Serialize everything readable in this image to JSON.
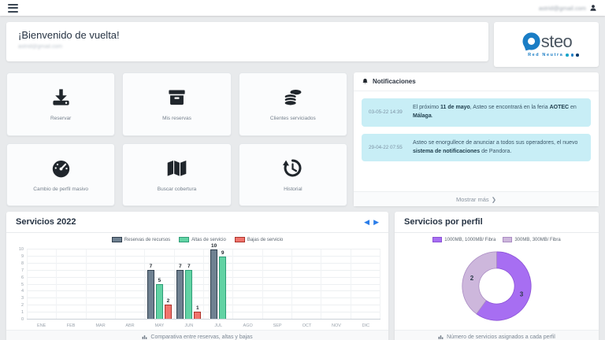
{
  "topbar": {
    "user_email": "astrid@gmail.com"
  },
  "welcome": {
    "title": "¡Bienvenido de vuelta!",
    "email": "astrid@gmail.com"
  },
  "logo": {
    "brand": "asteo",
    "wordmark_rest": "steo",
    "tagline": "Red Neutra",
    "blue": "#1a7dc5",
    "dot_colors": [
      "#16a6c9",
      "#1a7dc5",
      "#0b3a6b"
    ]
  },
  "quick_actions": [
    {
      "label": "Reservar",
      "icon": "download-icon"
    },
    {
      "label": "Mis reservas",
      "icon": "archive-icon"
    },
    {
      "label": "Clientes serviciados",
      "icon": "coins-icon"
    },
    {
      "label": "Cambio de perfil masivo",
      "icon": "gauge-icon"
    },
    {
      "label": "Buscar cobertura",
      "icon": "map-icon"
    },
    {
      "label": "Historial",
      "icon": "history-icon"
    }
  ],
  "notifications": {
    "title": "Notificaciones",
    "items": [
      {
        "date": "03-05-22 14:39",
        "segments": [
          {
            "t": "El próximo ",
            "b": false
          },
          {
            "t": "11 de mayo",
            "b": true
          },
          {
            "t": ", Asteo se encontrará en la feria ",
            "b": false
          },
          {
            "t": "AOTEC",
            "b": true
          },
          {
            "t": " en ",
            "b": false
          },
          {
            "t": "Málaga",
            "b": true
          },
          {
            "t": ".",
            "b": false
          }
        ]
      },
      {
        "date": "29-04-22 07:55",
        "segments": [
          {
            "t": "Asteo se enorgullece de anunciar a todos sus operadores, el nuevo ",
            "b": false
          },
          {
            "t": "sistema de notificaciones",
            "b": true
          },
          {
            "t": " de Pandora.",
            "b": false
          }
        ]
      }
    ],
    "show_more": "Mostrar más",
    "chevron": "❯"
  },
  "chart_data": [
    {
      "id": "servicios-2022",
      "type": "bar",
      "title": "Servicios 2022",
      "prev_arrow": "◀",
      "next_arrow": "▶",
      "categories": [
        "ENE",
        "FEB",
        "MAR",
        "ABR",
        "MAY",
        "JUN",
        "JUL",
        "AGO",
        "SEP",
        "OCT",
        "NOV",
        "DIC"
      ],
      "series": [
        {
          "name": "Reservas de recursos",
          "color": "#6f8191",
          "border": "#31404f",
          "values": [
            0,
            0,
            0,
            0,
            7,
            7,
            10,
            0,
            0,
            0,
            0,
            0
          ]
        },
        {
          "name": "Altas de servicio",
          "color": "#62d3a4",
          "border": "#2f9e78",
          "values": [
            0,
            0,
            0,
            0,
            5,
            7,
            9,
            0,
            0,
            0,
            0,
            0
          ]
        },
        {
          "name": "Bajas de servicio",
          "color": "#f0746d",
          "border": "#ad342c",
          "values": [
            0,
            0,
            0,
            0,
            2,
            1,
            0,
            0,
            0,
            0,
            0,
            0
          ]
        }
      ],
      "ylim": [
        0,
        10
      ],
      "ticks": [
        0,
        1,
        2,
        3,
        4,
        5,
        6,
        7,
        8,
        9,
        10
      ],
      "grid": true,
      "legend_position": "top",
      "footer": "Comparativa entre reservas, altas y bajas"
    },
    {
      "id": "servicios-por-perfil",
      "type": "doughnut",
      "title": "Servicios por perfil",
      "slices": [
        {
          "label": "1000MB, 1000MB/ Fibra",
          "value": 3,
          "color": "#a76ef2",
          "border": "#8b52d6"
        },
        {
          "label": "300MB, 300MB/ Fibra",
          "value": 2,
          "color": "#cdb7dc",
          "border": "#ab8cc4"
        }
      ],
      "legend_position": "top",
      "footer": "Número de servicios asignados a cada perfil"
    }
  ]
}
